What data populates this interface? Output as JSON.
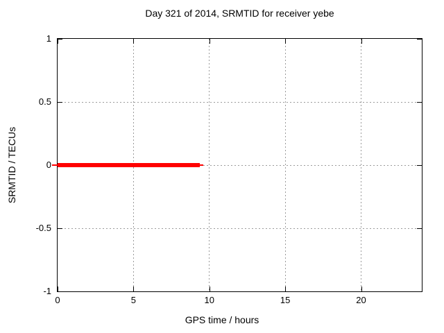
{
  "chart_data": {
    "type": "line",
    "title": "Day 321 of 2014, SRMTID for receiver yebe",
    "xlabel": "GPS time / hours",
    "ylabel": "SRMTID / TECUs",
    "xlim": [
      0,
      24
    ],
    "ylim": [
      -1,
      1
    ],
    "x_ticks": [
      0,
      5,
      10,
      15,
      20
    ],
    "x_tick_labels": [
      "0",
      "5",
      "10",
      "15",
      "20"
    ],
    "y_ticks": [
      -1,
      -0.5,
      0,
      0.5,
      1
    ],
    "y_tick_labels": [
      "-1",
      "-0.5",
      "0",
      "0.5",
      "1"
    ],
    "grid": true,
    "legend": "none",
    "series": [
      {
        "name": "SRMTID",
        "color": "#ff0000",
        "points": [
          [
            0,
            0
          ],
          [
            9.37,
            0
          ]
        ]
      }
    ]
  },
  "colors": {
    "background": "#ffffff",
    "border": "#000000",
    "grid": "#9a9a9a",
    "text": "#000000",
    "series_red": "#ff0000"
  }
}
